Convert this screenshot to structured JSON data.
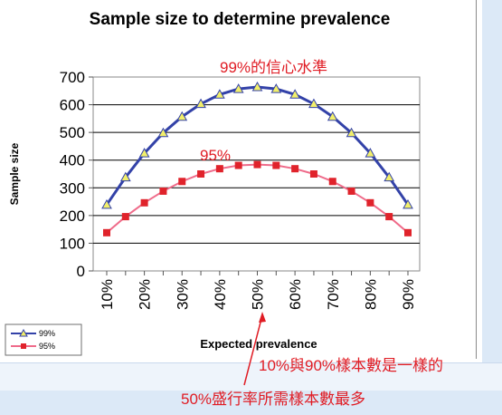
{
  "chart_data": {
    "type": "line",
    "title": "Sample size to determine prevalence",
    "xlabel": "Expected prevalence",
    "ylabel": "Sample size",
    "categories": [
      "10%",
      "15%",
      "20%",
      "25%",
      "30%",
      "35%",
      "40%",
      "45%",
      "50%",
      "55%",
      "60%",
      "65%",
      "70%",
      "75%",
      "80%",
      "85%",
      "90%"
    ],
    "tick_labels": [
      "10%",
      "20%",
      "30%",
      "40%",
      "50%",
      "60%",
      "70%",
      "80%",
      "90%"
    ],
    "ylim": [
      0,
      700
    ],
    "yticks": [
      "0",
      "100",
      "200",
      "300",
      "400",
      "500",
      "600",
      "700"
    ],
    "grid": true,
    "legend": "bottom-left",
    "series": [
      {
        "name": "99%",
        "color": "#3342a8",
        "marker": "triangle",
        "marker_color": "#f2ef6a",
        "values": [
          239,
          338,
          425,
          498,
          557,
          603,
          637,
          657,
          664,
          657,
          637,
          603,
          557,
          498,
          425,
          338,
          239
        ]
      },
      {
        "name": "95%",
        "color": "#ef6b8a",
        "marker": "square",
        "marker_color": "#e0232b",
        "values": [
          138,
          196,
          246,
          288,
          323,
          350,
          369,
          381,
          384,
          381,
          369,
          350,
          323,
          288,
          246,
          196,
          138
        ]
      }
    ]
  },
  "annotations": {
    "label_99": "99%的信心水準",
    "label_95": "95%",
    "note_same": "10%與90%樣本數是一樣的",
    "note_max": "50%盛行率所需樣本數最多",
    "color": "#e01c24"
  }
}
